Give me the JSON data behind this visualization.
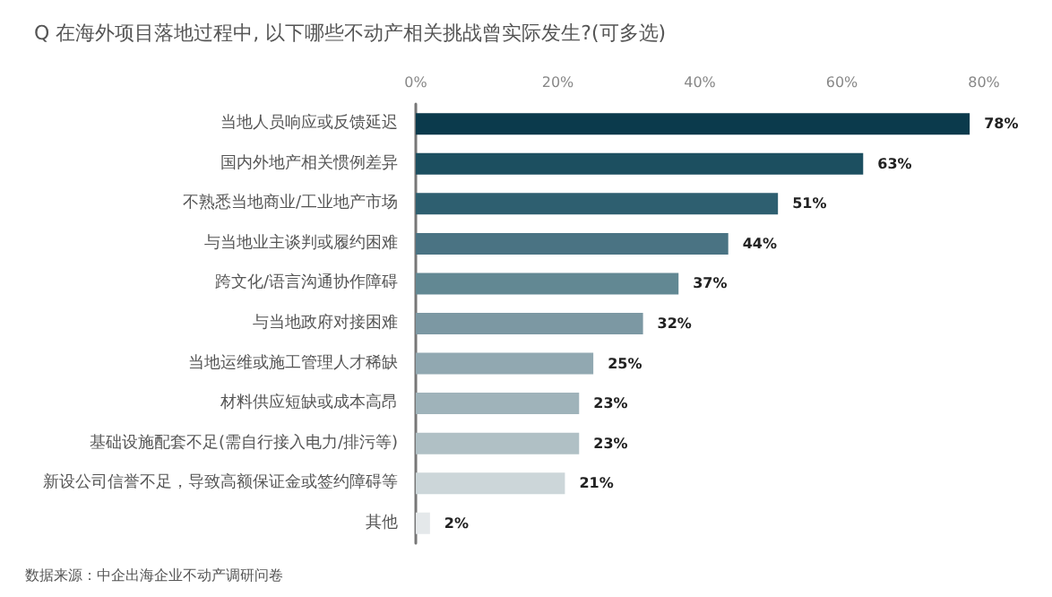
{
  "chart_data": {
    "type": "bar",
    "orientation": "horizontal",
    "title": "Q 在海外项目落地过程中, 以下哪些不动产相关挑战曾实际发生?(可多选)",
    "categories": [
      "当地人员响应或反馈延迟",
      "国内外地产相关惯例差异",
      "不熟悉当地商业/工业地产市场",
      "与当地业主谈判或履约困难",
      "跨文化/语言沟通协作障碍",
      "与当地政府对接困难",
      "当地运维或施工管理人才稀缺",
      "材料供应短缺或成本高昂",
      "基础设施配套不足(需自行接入电力/排污等)",
      "新设公司信誉不足，导致高额保证金或签约障碍等",
      "其他"
    ],
    "values": [
      78,
      63,
      51,
      44,
      37,
      32,
      25,
      23,
      23,
      21,
      2
    ],
    "colors": [
      "#0b3a4c",
      "#1c4f60",
      "#2e5f70",
      "#4a7383",
      "#628893",
      "#7c98a3",
      "#91a8b1",
      "#9fb3ba",
      "#b0c0c5",
      "#ccd6d9",
      "#e4e8ea"
    ],
    "value_labels": [
      "78%",
      "63%",
      "51%",
      "44%",
      "37%",
      "32%",
      "25%",
      "23%",
      "23%",
      "21%",
      "2%"
    ],
    "xlim": [
      0,
      80
    ],
    "xticks": [
      {
        "value": 0,
        "label": "0%"
      },
      {
        "value": 20,
        "label": "20%"
      },
      {
        "value": 40,
        "label": "40%"
      },
      {
        "value": 60,
        "label": "60%"
      },
      {
        "value": 80,
        "label": "80%"
      }
    ],
    "grid": false,
    "annotations": [
      "数据来源：中企出海企业不动产调研问卷"
    ]
  }
}
